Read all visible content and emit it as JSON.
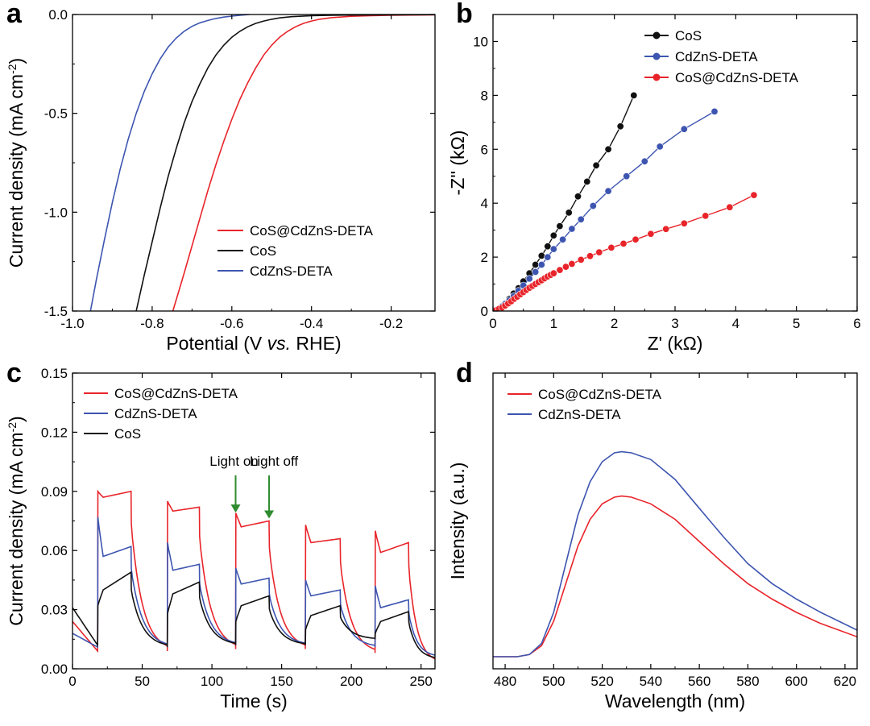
{
  "figure": {
    "panels": [
      {
        "letter": "a",
        "chart_index": 0
      },
      {
        "letter": "b",
        "chart_index": 1
      },
      {
        "letter": "c",
        "chart_index": 2
      },
      {
        "letter": "d",
        "chart_index": 3
      }
    ]
  },
  "colors": {
    "red": "#e8242a",
    "black": "#111111",
    "blue": "#3d55b0",
    "green": "#2e8b2e"
  },
  "chart_data": [
    {
      "type": "line",
      "panel": "a",
      "xlabel_parts": [
        "Potential (V ",
        "vs.",
        " RHE)"
      ],
      "ylabel_parts": [
        "Current density (mA cm",
        "-2",
        ")"
      ],
      "xlim": [
        -1.0,
        -0.09
      ],
      "ylim": [
        -1.5,
        0.0
      ],
      "xticks": [
        -1.0,
        -0.8,
        -0.6,
        -0.4,
        -0.2
      ],
      "xtick_labels": [
        "-1.0",
        "-0.8",
        "-0.6",
        "-0.4",
        "-0.2"
      ],
      "yticks": [
        0.0,
        -0.5,
        -1.0,
        -1.5
      ],
      "ytick_labels": [
        "0.0",
        "-0.5",
        "-1.0",
        "-1.5"
      ],
      "legend_position": "bottom-right",
      "series": [
        {
          "name": "CoS@CdZnS-DETA",
          "color": "#e8242a",
          "x": [
            -0.748,
            -0.72,
            -0.7,
            -0.68,
            -0.66,
            -0.64,
            -0.62,
            -0.6,
            -0.58,
            -0.56,
            -0.54,
            -0.52,
            -0.5,
            -0.48,
            -0.46,
            -0.44,
            -0.42,
            -0.4,
            -0.38,
            -0.35,
            -0.3,
            -0.25,
            -0.2,
            -0.15,
            -0.09
          ],
          "y": [
            -1.5,
            -1.31,
            -1.17,
            -1.03,
            -0.89,
            -0.76,
            -0.64,
            -0.53,
            -0.43,
            -0.345,
            -0.27,
            -0.205,
            -0.155,
            -0.115,
            -0.085,
            -0.062,
            -0.045,
            -0.033,
            -0.024,
            -0.016,
            -0.009,
            -0.006,
            -0.004,
            -0.003,
            -0.002
          ]
        },
        {
          "name": "CoS",
          "color": "#111111",
          "x": [
            -0.84,
            -0.82,
            -0.8,
            -0.78,
            -0.76,
            -0.74,
            -0.72,
            -0.7,
            -0.68,
            -0.66,
            -0.64,
            -0.62,
            -0.6,
            -0.58,
            -0.56,
            -0.54,
            -0.52,
            -0.5,
            -0.48,
            -0.45,
            -0.4,
            -0.35,
            -0.3,
            -0.2,
            -0.09
          ],
          "y": [
            -1.5,
            -1.32,
            -1.15,
            -0.98,
            -0.82,
            -0.68,
            -0.55,
            -0.44,
            -0.35,
            -0.27,
            -0.205,
            -0.155,
            -0.115,
            -0.085,
            -0.062,
            -0.045,
            -0.033,
            -0.024,
            -0.017,
            -0.011,
            -0.006,
            -0.004,
            -0.003,
            -0.002,
            -0.001
          ]
        },
        {
          "name": "CdZnS-DETA",
          "color": "#3d55b0",
          "x": [
            -0.955,
            -0.94,
            -0.92,
            -0.9,
            -0.88,
            -0.86,
            -0.84,
            -0.82,
            -0.8,
            -0.78,
            -0.76,
            -0.74,
            -0.72,
            -0.7,
            -0.68,
            -0.66,
            -0.64,
            -0.62,
            -0.6,
            -0.58,
            -0.555
          ],
          "y": [
            -1.5,
            -1.34,
            -1.14,
            -0.95,
            -0.78,
            -0.63,
            -0.5,
            -0.39,
            -0.3,
            -0.225,
            -0.165,
            -0.12,
            -0.085,
            -0.06,
            -0.042,
            -0.03,
            -0.02,
            -0.013,
            -0.008,
            -0.004,
            0.0
          ]
        }
      ]
    },
    {
      "type": "scatter",
      "panel": "b",
      "xlabel": "Z' (kΩ)",
      "ylabel": "-Z'' (kΩ)",
      "xlim": [
        0,
        6
      ],
      "ylim": [
        0,
        11
      ],
      "xticks": [
        0,
        1,
        2,
        3,
        4,
        5,
        6
      ],
      "xtick_labels": [
        "0",
        "1",
        "2",
        "3",
        "4",
        "5",
        "6"
      ],
      "yticks": [
        0,
        2,
        4,
        6,
        8,
        10
      ],
      "ytick_labels": [
        "0",
        "2",
        "4",
        "6",
        "8",
        "10"
      ],
      "legend_position": "top-right",
      "series": [
        {
          "name": "CoS",
          "color": "#111111",
          "x": [
            0.05,
            0.1,
            0.15,
            0.2,
            0.27,
            0.34,
            0.42,
            0.5,
            0.6,
            0.7,
            0.8,
            0.9,
            1.0,
            1.1,
            1.25,
            1.4,
            1.55,
            1.7,
            1.9,
            2.1,
            2.32
          ],
          "y": [
            0.05,
            0.1,
            0.18,
            0.28,
            0.45,
            0.65,
            0.85,
            1.1,
            1.4,
            1.72,
            2.05,
            2.4,
            2.8,
            3.15,
            3.65,
            4.25,
            4.8,
            5.4,
            6.0,
            6.85,
            8.0
          ]
        },
        {
          "name": "CdZnS-DETA",
          "color": "#3d55b0",
          "x": [
            0.05,
            0.1,
            0.15,
            0.2,
            0.27,
            0.34,
            0.42,
            0.5,
            0.6,
            0.7,
            0.8,
            0.9,
            1.0,
            1.15,
            1.3,
            1.45,
            1.65,
            1.9,
            2.2,
            2.5,
            2.75,
            3.15,
            3.65
          ],
          "y": [
            0.04,
            0.1,
            0.17,
            0.26,
            0.4,
            0.55,
            0.75,
            0.95,
            1.2,
            1.45,
            1.72,
            2.0,
            2.3,
            2.65,
            3.05,
            3.4,
            3.9,
            4.45,
            5.0,
            5.55,
            6.1,
            6.75,
            7.4
          ]
        },
        {
          "name": "CoS@CdZnS-DETA",
          "color": "#e8242a",
          "x": [
            0.05,
            0.1,
            0.15,
            0.2,
            0.25,
            0.3,
            0.35,
            0.4,
            0.45,
            0.5,
            0.55,
            0.6,
            0.65,
            0.7,
            0.75,
            0.8,
            0.85,
            0.9,
            0.95,
            1.0,
            1.1,
            1.2,
            1.3,
            1.45,
            1.6,
            1.75,
            1.95,
            2.15,
            2.35,
            2.6,
            2.85,
            3.15,
            3.5,
            3.9,
            4.3
          ],
          "y": [
            0.03,
            0.08,
            0.13,
            0.2,
            0.28,
            0.36,
            0.45,
            0.53,
            0.62,
            0.7,
            0.78,
            0.86,
            0.93,
            1.0,
            1.07,
            1.14,
            1.21,
            1.28,
            1.34,
            1.4,
            1.52,
            1.64,
            1.75,
            1.9,
            2.04,
            2.18,
            2.35,
            2.5,
            2.65,
            2.86,
            3.04,
            3.25,
            3.53,
            3.85,
            4.3
          ]
        }
      ]
    },
    {
      "type": "line",
      "panel": "c",
      "xlabel": "Time (s)",
      "ylabel_parts": [
        "Current density (mA cm",
        "-2",
        ")"
      ],
      "xlim": [
        0,
        260
      ],
      "ylim": [
        0.0,
        0.15
      ],
      "xticks": [
        0,
        50,
        100,
        150,
        200,
        250
      ],
      "xtick_labels": [
        "0",
        "50",
        "100",
        "150",
        "200",
        "250"
      ],
      "yticks": [
        0.0,
        0.03,
        0.06,
        0.09,
        0.12,
        0.15
      ],
      "ytick_labels": [
        "0.00",
        "0.03",
        "0.06",
        "0.09",
        "0.12",
        "0.15"
      ],
      "legend_position": "top-left",
      "light_cycles": [
        [
          18,
          42
        ],
        [
          68,
          91
        ],
        [
          117,
          141
        ],
        [
          167,
          192
        ],
        [
          217,
          241
        ]
      ],
      "annotations": [
        {
          "text": "Light on",
          "x": 117,
          "y": 0.078
        },
        {
          "text": "Light off",
          "x": 141,
          "y": 0.075
        }
      ],
      "series": [
        {
          "name": "CoS@CdZnS-DETA",
          "color": "#e8242a",
          "base": [
            0.024,
            0.016,
            0.013,
            0.013,
            0.012
          ],
          "on": [
            [
              0.09,
              0.087,
              0.09
            ],
            [
              0.085,
              0.08,
              0.082
            ],
            [
              0.079,
              0.072,
              0.075
            ],
            [
              0.073,
              0.064,
              0.066
            ],
            [
              0.07,
              0.059,
              0.064
            ]
          ],
          "off_end": [
            0.009,
            0.009,
            0.01,
            0.01,
            0.008
          ],
          "end": 0.003
        },
        {
          "name": "CdZnS-DETA",
          "color": "#3d55b0",
          "base": [
            0.018,
            0.016,
            0.015,
            0.014,
            0.014
          ],
          "on": [
            [
              0.077,
              0.057,
              0.062
            ],
            [
              0.064,
              0.05,
              0.053
            ],
            [
              0.051,
              0.043,
              0.046
            ],
            [
              0.045,
              0.037,
              0.04
            ],
            [
              0.042,
              0.031,
              0.035
            ]
          ],
          "off_end": [
            0.011,
            0.011,
            0.012,
            0.012,
            0.011
          ],
          "end": 0.006
        },
        {
          "name": "CoS",
          "color": "#111111",
          "base": [
            0.031,
            0.018,
            0.016,
            0.016,
            0.016
          ],
          "on": [
            [
              0.032,
              0.04,
              0.049
            ],
            [
              0.028,
              0.038,
              0.044
            ],
            [
              0.024,
              0.032,
              0.037
            ],
            [
              0.02,
              0.027,
              0.032
            ],
            [
              0.018,
              0.024,
              0.029
            ]
          ],
          "off_end": [
            0.012,
            0.011,
            0.012,
            0.012,
            0.015
          ],
          "end": 0.005
        }
      ]
    },
    {
      "type": "line",
      "panel": "d",
      "xlabel": "Wavelength (nm)",
      "ylabel": "Intensity (a.u.)",
      "xlim": [
        475,
        625
      ],
      "ylim": [
        0,
        1.0
      ],
      "y_ticks_shown": false,
      "xticks": [
        480,
        500,
        520,
        540,
        560,
        580,
        600,
        620
      ],
      "xtick_labels": [
        "480",
        "500",
        "520",
        "540",
        "560",
        "580",
        "600",
        "620"
      ],
      "legend_position": "top-left",
      "series": [
        {
          "name": "CoS@CdZnS-DETA",
          "color": "#e8242a",
          "x": [
            475,
            485,
            490,
            495,
            500,
            505,
            510,
            515,
            520,
            525,
            528,
            532,
            540,
            550,
            560,
            570,
            580,
            590,
            600,
            610,
            625
          ],
          "y": [
            0.0,
            0.0,
            0.01,
            0.05,
            0.16,
            0.33,
            0.5,
            0.62,
            0.69,
            0.72,
            0.725,
            0.72,
            0.69,
            0.62,
            0.52,
            0.42,
            0.33,
            0.26,
            0.2,
            0.15,
            0.09
          ]
        },
        {
          "name": "CdZnS-DETA",
          "color": "#3d55b0",
          "x": [
            475,
            485,
            490,
            495,
            500,
            505,
            510,
            515,
            520,
            525,
            528,
            532,
            540,
            550,
            560,
            570,
            580,
            590,
            600,
            610,
            625
          ],
          "y": [
            0.0,
            0.0,
            0.01,
            0.06,
            0.2,
            0.42,
            0.64,
            0.79,
            0.88,
            0.92,
            0.925,
            0.92,
            0.89,
            0.8,
            0.67,
            0.54,
            0.42,
            0.33,
            0.26,
            0.2,
            0.12
          ]
        }
      ]
    }
  ]
}
